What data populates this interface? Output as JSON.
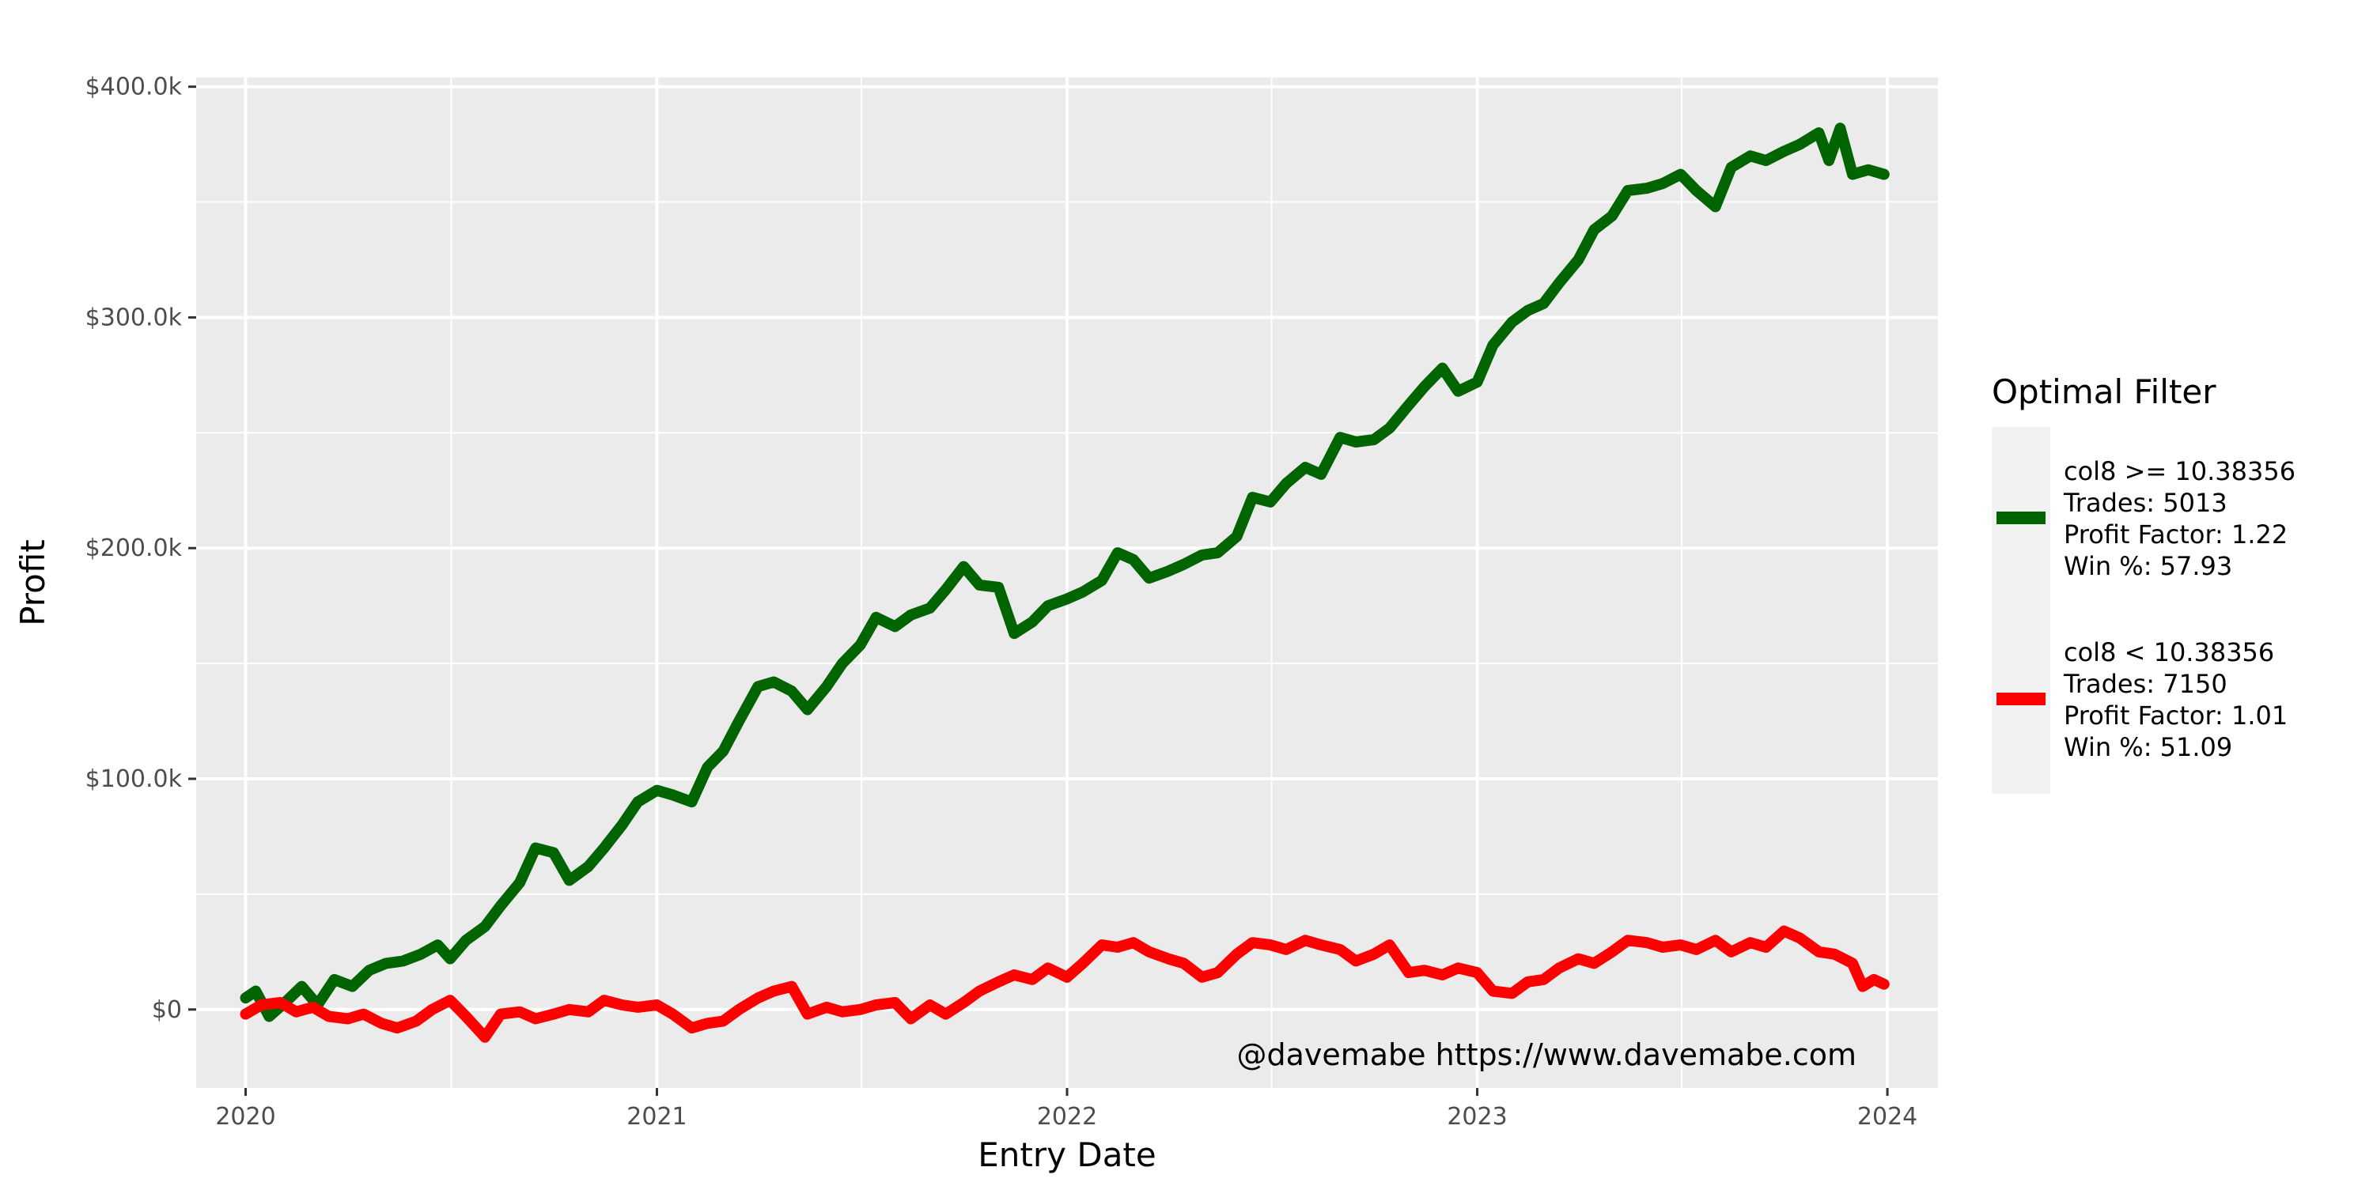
{
  "chart_data": {
    "type": "line",
    "title": "",
    "xlabel": "Entry Date",
    "ylabel": "Profit",
    "x_ticks": [
      "2020",
      "2021",
      "2022",
      "2023",
      "2024"
    ],
    "y_ticks": [
      "$0",
      "$100.0k",
      "$200.0k",
      "$300.0k",
      "$400.0k"
    ],
    "xlim": [
      "2019-11-18",
      "2024-02-15"
    ],
    "ylim": [
      -34000,
      404000
    ],
    "grid": true,
    "legend": {
      "title": "Optimal Filter",
      "position": "right"
    },
    "annotation": "@davemabe https://www.davemabe.com",
    "series": [
      {
        "name": " col8 >= 10.38356",
        "legend_lines": [
          " col8 >= 10.38356",
          "Trades: 5013",
          "Profit Factor: 1.22",
          "Win %: 57.93"
        ],
        "color": "#006400",
        "points": [
          [
            "2020-01-01",
            5000
          ],
          [
            "2020-01-10",
            8000
          ],
          [
            "2020-01-22",
            -3000
          ],
          [
            "2020-02-05",
            3000
          ],
          [
            "2020-02-20",
            10000
          ],
          [
            "2020-03-05",
            2000
          ],
          [
            "2020-03-20",
            13000
          ],
          [
            "2020-04-05",
            10000
          ],
          [
            "2020-04-20",
            17000
          ],
          [
            "2020-05-05",
            20000
          ],
          [
            "2020-05-20",
            21000
          ],
          [
            "2020-06-05",
            24000
          ],
          [
            "2020-06-20",
            28000
          ],
          [
            "2020-07-01",
            22000
          ],
          [
            "2020-07-15",
            30000
          ],
          [
            "2020-08-01",
            36000
          ],
          [
            "2020-08-15",
            45000
          ],
          [
            "2020-09-01",
            55000
          ],
          [
            "2020-09-15",
            70000
          ],
          [
            "2020-10-01",
            68000
          ],
          [
            "2020-10-15",
            56000
          ],
          [
            "2020-11-01",
            62000
          ],
          [
            "2020-11-15",
            70000
          ],
          [
            "2020-12-01",
            80000
          ],
          [
            "2020-12-15",
            90000
          ],
          [
            "2021-01-01",
            95000
          ],
          [
            "2021-01-15",
            93000
          ],
          [
            "2021-02-01",
            90000
          ],
          [
            "2021-02-15",
            105000
          ],
          [
            "2021-03-01",
            112000
          ],
          [
            "2021-03-15",
            125000
          ],
          [
            "2021-04-01",
            140000
          ],
          [
            "2021-04-15",
            142000
          ],
          [
            "2021-05-01",
            138000
          ],
          [
            "2021-05-15",
            130000
          ],
          [
            "2021-06-01",
            140000
          ],
          [
            "2021-06-15",
            150000
          ],
          [
            "2021-07-01",
            158000
          ],
          [
            "2021-07-15",
            170000
          ],
          [
            "2021-08-01",
            166000
          ],
          [
            "2021-08-15",
            171000
          ],
          [
            "2021-09-01",
            174000
          ],
          [
            "2021-09-15",
            182000
          ],
          [
            "2021-10-01",
            192000
          ],
          [
            "2021-10-15",
            184000
          ],
          [
            "2021-11-01",
            183000
          ],
          [
            "2021-11-15",
            163000
          ],
          [
            "2021-12-01",
            168000
          ],
          [
            "2021-12-15",
            175000
          ],
          [
            "2022-01-01",
            178000
          ],
          [
            "2022-01-15",
            181000
          ],
          [
            "2022-02-01",
            186000
          ],
          [
            "2022-02-15",
            198000
          ],
          [
            "2022-03-01",
            195000
          ],
          [
            "2022-03-15",
            187000
          ],
          [
            "2022-04-01",
            190000
          ],
          [
            "2022-04-15",
            193000
          ],
          [
            "2022-05-01",
            197000
          ],
          [
            "2022-05-15",
            198000
          ],
          [
            "2022-06-01",
            205000
          ],
          [
            "2022-06-15",
            222000
          ],
          [
            "2022-07-01",
            220000
          ],
          [
            "2022-07-15",
            228000
          ],
          [
            "2022-08-01",
            235000
          ],
          [
            "2022-08-15",
            232000
          ],
          [
            "2022-09-01",
            248000
          ],
          [
            "2022-09-15",
            246000
          ],
          [
            "2022-10-01",
            247000
          ],
          [
            "2022-10-15",
            252000
          ],
          [
            "2022-11-01",
            262000
          ],
          [
            "2022-11-15",
            270000
          ],
          [
            "2022-12-01",
            278000
          ],
          [
            "2022-12-15",
            268000
          ],
          [
            "2023-01-01",
            272000
          ],
          [
            "2023-01-15",
            288000
          ],
          [
            "2023-02-01",
            298000
          ],
          [
            "2023-02-15",
            303000
          ],
          [
            "2023-03-01",
            306000
          ],
          [
            "2023-03-15",
            315000
          ],
          [
            "2023-04-01",
            325000
          ],
          [
            "2023-04-15",
            338000
          ],
          [
            "2023-05-01",
            344000
          ],
          [
            "2023-05-15",
            355000
          ],
          [
            "2023-06-01",
            356000
          ],
          [
            "2023-06-15",
            358000
          ],
          [
            "2023-07-01",
            362000
          ],
          [
            "2023-07-15",
            355000
          ],
          [
            "2023-08-01",
            348000
          ],
          [
            "2023-08-15",
            365000
          ],
          [
            "2023-09-01",
            370000
          ],
          [
            "2023-09-15",
            368000
          ],
          [
            "2023-10-01",
            372000
          ],
          [
            "2023-10-15",
            375000
          ],
          [
            "2023-11-01",
            380000
          ],
          [
            "2023-11-10",
            368000
          ],
          [
            "2023-11-20",
            382000
          ],
          [
            "2023-12-01",
            362000
          ],
          [
            "2023-12-15",
            364000
          ],
          [
            "2023-12-29",
            362000
          ]
        ]
      },
      {
        "name": " col8 < 10.38356",
        "legend_lines": [
          " col8 < 10.38356",
          "Trades: 7150",
          "Profit Factor: 1.01",
          "Win %: 51.09"
        ],
        "color": "#ff0000",
        "points": [
          [
            "2020-01-01",
            -2000
          ],
          [
            "2020-01-15",
            2000
          ],
          [
            "2020-02-01",
            3000
          ],
          [
            "2020-02-15",
            -1000
          ],
          [
            "2020-03-01",
            1000
          ],
          [
            "2020-03-15",
            -3000
          ],
          [
            "2020-04-01",
            -4000
          ],
          [
            "2020-04-15",
            -2000
          ],
          [
            "2020-05-01",
            -6000
          ],
          [
            "2020-05-15",
            -8000
          ],
          [
            "2020-06-01",
            -5000
          ],
          [
            "2020-06-15",
            0
          ],
          [
            "2020-07-01",
            4000
          ],
          [
            "2020-07-15",
            -3000
          ],
          [
            "2020-08-01",
            -12000
          ],
          [
            "2020-08-15",
            -2000
          ],
          [
            "2020-09-01",
            -1000
          ],
          [
            "2020-09-15",
            -4000
          ],
          [
            "2020-10-01",
            -2000
          ],
          [
            "2020-10-15",
            0
          ],
          [
            "2020-11-01",
            -1000
          ],
          [
            "2020-11-15",
            4000
          ],
          [
            "2020-12-01",
            2000
          ],
          [
            "2020-12-15",
            1000
          ],
          [
            "2021-01-01",
            2000
          ],
          [
            "2021-01-15",
            -2000
          ],
          [
            "2021-02-01",
            -8000
          ],
          [
            "2021-02-15",
            -6000
          ],
          [
            "2021-03-01",
            -5000
          ],
          [
            "2021-03-15",
            0
          ],
          [
            "2021-04-01",
            5000
          ],
          [
            "2021-04-15",
            8000
          ],
          [
            "2021-05-01",
            10000
          ],
          [
            "2021-05-15",
            -2000
          ],
          [
            "2021-06-01",
            1000
          ],
          [
            "2021-06-15",
            -1000
          ],
          [
            "2021-07-01",
            0
          ],
          [
            "2021-07-15",
            2000
          ],
          [
            "2021-08-01",
            3000
          ],
          [
            "2021-08-15",
            -4000
          ],
          [
            "2021-09-01",
            2000
          ],
          [
            "2021-09-15",
            -2000
          ],
          [
            "2021-10-01",
            3000
          ],
          [
            "2021-10-15",
            8000
          ],
          [
            "2021-11-01",
            12000
          ],
          [
            "2021-11-15",
            15000
          ],
          [
            "2021-12-01",
            13000
          ],
          [
            "2021-12-15",
            18000
          ],
          [
            "2022-01-01",
            14000
          ],
          [
            "2022-01-15",
            20000
          ],
          [
            "2022-02-01",
            28000
          ],
          [
            "2022-02-15",
            27000
          ],
          [
            "2022-03-01",
            29000
          ],
          [
            "2022-03-15",
            25000
          ],
          [
            "2022-04-01",
            22000
          ],
          [
            "2022-04-15",
            20000
          ],
          [
            "2022-05-01",
            14000
          ],
          [
            "2022-05-15",
            16000
          ],
          [
            "2022-06-01",
            24000
          ],
          [
            "2022-06-15",
            29000
          ],
          [
            "2022-07-01",
            28000
          ],
          [
            "2022-07-15",
            26000
          ],
          [
            "2022-08-01",
            30000
          ],
          [
            "2022-08-15",
            28000
          ],
          [
            "2022-09-01",
            26000
          ],
          [
            "2022-09-15",
            21000
          ],
          [
            "2022-10-01",
            24000
          ],
          [
            "2022-10-15",
            28000
          ],
          [
            "2022-11-01",
            16000
          ],
          [
            "2022-11-15",
            17000
          ],
          [
            "2022-12-01",
            15000
          ],
          [
            "2022-12-15",
            18000
          ],
          [
            "2023-01-01",
            16000
          ],
          [
            "2023-01-15",
            8000
          ],
          [
            "2023-02-01",
            7000
          ],
          [
            "2023-02-15",
            12000
          ],
          [
            "2023-03-01",
            13000
          ],
          [
            "2023-03-15",
            18000
          ],
          [
            "2023-04-01",
            22000
          ],
          [
            "2023-04-15",
            20000
          ],
          [
            "2023-05-01",
            25000
          ],
          [
            "2023-05-15",
            30000
          ],
          [
            "2023-06-01",
            29000
          ],
          [
            "2023-06-15",
            27000
          ],
          [
            "2023-07-01",
            28000
          ],
          [
            "2023-07-15",
            26000
          ],
          [
            "2023-08-01",
            30000
          ],
          [
            "2023-08-15",
            25000
          ],
          [
            "2023-09-01",
            29000
          ],
          [
            "2023-09-15",
            27000
          ],
          [
            "2023-10-01",
            34000
          ],
          [
            "2023-10-15",
            31000
          ],
          [
            "2023-11-01",
            25000
          ],
          [
            "2023-11-15",
            24000
          ],
          [
            "2023-12-01",
            20000
          ],
          [
            "2023-12-10",
            10000
          ],
          [
            "2023-12-20",
            13000
          ],
          [
            "2023-12-29",
            11000
          ]
        ]
      }
    ]
  }
}
